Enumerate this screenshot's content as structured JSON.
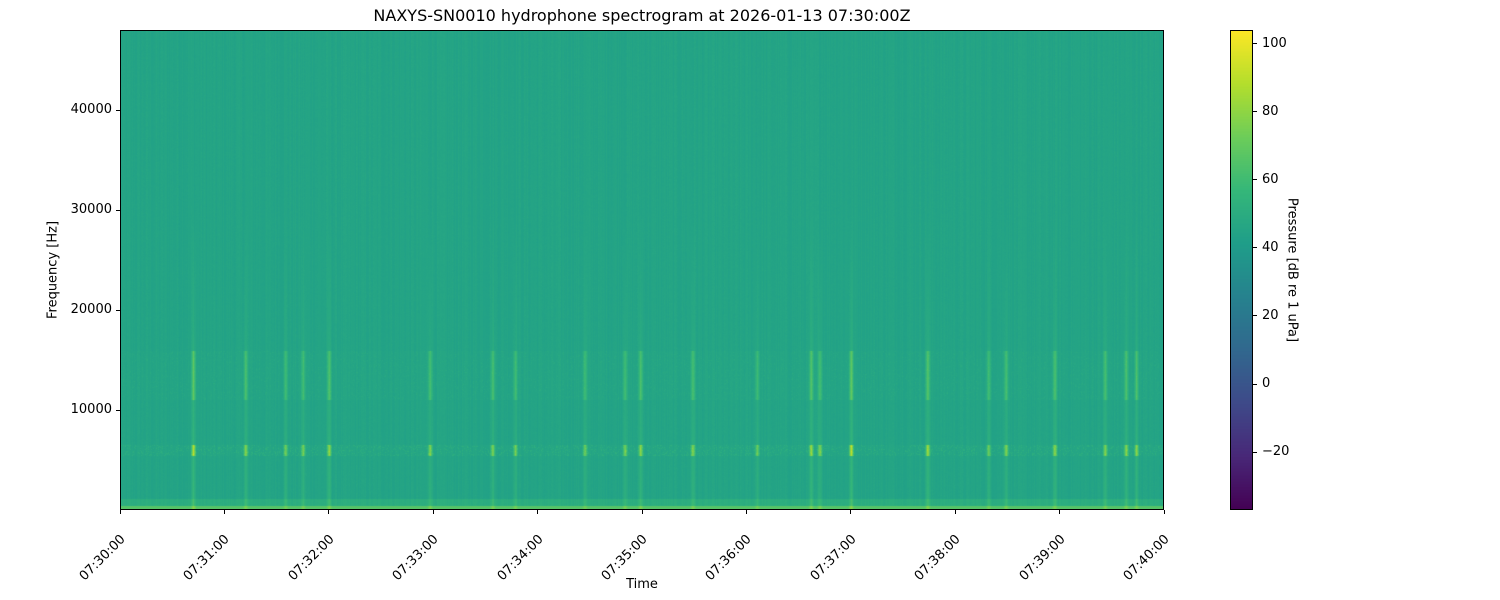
{
  "chart_data": {
    "type": "heatmap",
    "title": "NAXYS-SN0010 hydrophone spectrogram at 2026-01-13 07:30:00Z",
    "xlabel": "Time",
    "ylabel": "Frequency [Hz]",
    "colorbar_label": "Pressure [dB re 1 uPa]",
    "colormap": "viridis",
    "xlim": [
      "07:30:00",
      "07:40:00"
    ],
    "ylim": [
      0,
      48000
    ],
    "clim": [
      -37,
      104
    ],
    "x_ticks": [
      "07:30:00",
      "07:31:00",
      "07:32:00",
      "07:33:00",
      "07:34:00",
      "07:35:00",
      "07:36:00",
      "07:37:00",
      "07:38:00",
      "07:39:00",
      "07:40:00"
    ],
    "y_ticks": [
      10000,
      20000,
      30000,
      40000
    ],
    "colorbar_ticks": [
      -20,
      0,
      20,
      40,
      60,
      80,
      100
    ],
    "background_level_db": 45,
    "low_frequency_band": {
      "freq_max_hz": 500,
      "level_db": 66
    },
    "tonal_band": {
      "freq_hz": 6000,
      "level_db": 58
    },
    "broadband_band": {
      "freq_range_hz": [
        11000,
        16000
      ],
      "level_db": 52
    },
    "events": [
      {
        "time": "07:30:42",
        "peak_db": 82
      },
      {
        "time": "07:31:12",
        "peak_db": 74
      },
      {
        "time": "07:31:35",
        "peak_db": 68
      },
      {
        "time": "07:31:45",
        "peak_db": 70
      },
      {
        "time": "07:32:00",
        "peak_db": 76
      },
      {
        "time": "07:32:58",
        "peak_db": 74
      },
      {
        "time": "07:33:34",
        "peak_db": 72
      },
      {
        "time": "07:33:47",
        "peak_db": 70
      },
      {
        "time": "07:34:27",
        "peak_db": 68
      },
      {
        "time": "07:34:50",
        "peak_db": 72
      },
      {
        "time": "07:34:59",
        "peak_db": 76
      },
      {
        "time": "07:35:29",
        "peak_db": 74
      },
      {
        "time": "07:36:06",
        "peak_db": 68
      },
      {
        "time": "07:36:37",
        "peak_db": 76
      },
      {
        "time": "07:36:42",
        "peak_db": 74
      },
      {
        "time": "07:37:00",
        "peak_db": 84
      },
      {
        "time": "07:37:44",
        "peak_db": 80
      },
      {
        "time": "07:38:19",
        "peak_db": 68
      },
      {
        "time": "07:38:29",
        "peak_db": 74
      },
      {
        "time": "07:38:57",
        "peak_db": 74
      },
      {
        "time": "07:39:26",
        "peak_db": 72
      },
      {
        "time": "07:39:38",
        "peak_db": 74
      },
      {
        "time": "07:39:44",
        "peak_db": 74
      }
    ]
  }
}
